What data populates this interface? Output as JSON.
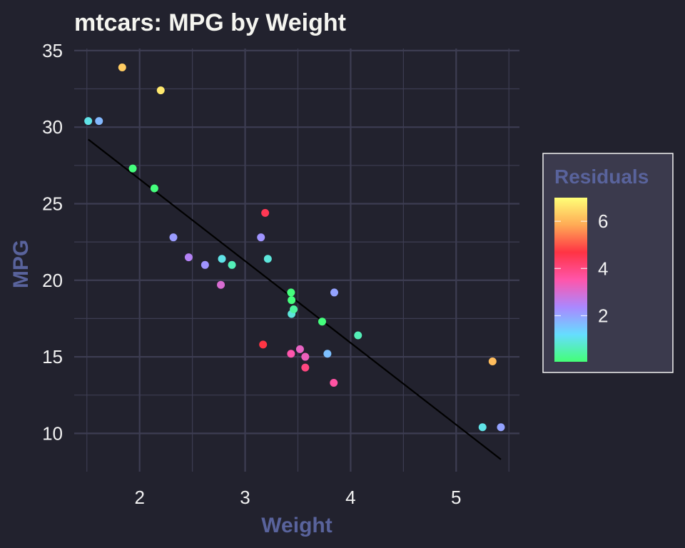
{
  "chart_data": {
    "type": "scatter",
    "title": "mtcars: MPG by Weight",
    "xlabel": "Weight",
    "ylabel": "MPG",
    "xlim": [
      1.38,
      5.6
    ],
    "ylim": [
      7.5,
      35.6
    ],
    "x_ticks": [
      2,
      3,
      4,
      5
    ],
    "y_ticks": [
      10,
      15,
      20,
      25,
      30,
      35
    ],
    "x_tick_labels": [
      "2",
      "3",
      "4",
      "5"
    ],
    "y_tick_labels": [
      "10",
      "15",
      "20",
      "25",
      "30",
      "35"
    ],
    "grid": true,
    "legend": {
      "title": "Residuals",
      "placement": "right",
      "ticks": [
        2,
        4,
        6
      ],
      "tick_labels": [
        "2",
        "4",
        "6"
      ],
      "range": [
        0.05,
        7.0
      ],
      "colorscale": [
        "#44ff77",
        "#66ddff",
        "#aa88ff",
        "#ff55aa",
        "#ff3344",
        "#ffaa55",
        "#ffff77"
      ]
    },
    "fit_line": {
      "x": [
        1.513,
        5.424
      ],
      "y": [
        29.2,
        8.3
      ],
      "color": "#000000"
    },
    "points": [
      {
        "x": 1.513,
        "y": 30.4,
        "r": 1.0
      },
      {
        "x": 1.615,
        "y": 30.4,
        "r": 1.7
      },
      {
        "x": 1.835,
        "y": 33.9,
        "r": 6.3
      },
      {
        "x": 1.935,
        "y": 27.3,
        "r": 0.1
      },
      {
        "x": 2.14,
        "y": 26.0,
        "r": 0.1
      },
      {
        "x": 2.2,
        "y": 32.4,
        "r": 6.7
      },
      {
        "x": 2.32,
        "y": 22.8,
        "r": 2.1
      },
      {
        "x": 2.465,
        "y": 21.5,
        "r": 2.5
      },
      {
        "x": 2.62,
        "y": 21.0,
        "r": 2.2
      },
      {
        "x": 2.77,
        "y": 19.7,
        "r": 3.0
      },
      {
        "x": 2.78,
        "y": 21.4,
        "r": 1.0
      },
      {
        "x": 2.875,
        "y": 21.0,
        "r": 0.6
      },
      {
        "x": 3.15,
        "y": 22.8,
        "r": 2.2
      },
      {
        "x": 3.17,
        "y": 15.8,
        "r": 4.7
      },
      {
        "x": 3.19,
        "y": 24.4,
        "r": 4.5
      },
      {
        "x": 3.215,
        "y": 21.4,
        "r": 0.9
      },
      {
        "x": 3.435,
        "y": 19.2,
        "r": 0.1
      },
      {
        "x": 3.44,
        "y": 18.7,
        "r": 0.1
      },
      {
        "x": 3.44,
        "y": 17.8,
        "r": 0.9
      },
      {
        "x": 3.46,
        "y": 18.1,
        "r": 0.4
      },
      {
        "x": 3.435,
        "y": 15.2,
        "r": 3.5
      },
      {
        "x": 3.52,
        "y": 15.5,
        "r": 3.2
      },
      {
        "x": 3.57,
        "y": 15.0,
        "r": 3.3
      },
      {
        "x": 3.57,
        "y": 14.3,
        "r": 4.0
      },
      {
        "x": 3.73,
        "y": 17.3,
        "r": 0.1
      },
      {
        "x": 3.78,
        "y": 15.2,
        "r": 1.6
      },
      {
        "x": 3.84,
        "y": 13.3,
        "r": 3.6
      },
      {
        "x": 3.845,
        "y": 19.2,
        "r": 2.0
      },
      {
        "x": 4.07,
        "y": 16.4,
        "r": 0.6
      },
      {
        "x": 5.25,
        "y": 10.4,
        "r": 1.0
      },
      {
        "x": 5.345,
        "y": 14.7,
        "r": 6.1
      },
      {
        "x": 5.424,
        "y": 10.4,
        "r": 2.0
      }
    ]
  }
}
